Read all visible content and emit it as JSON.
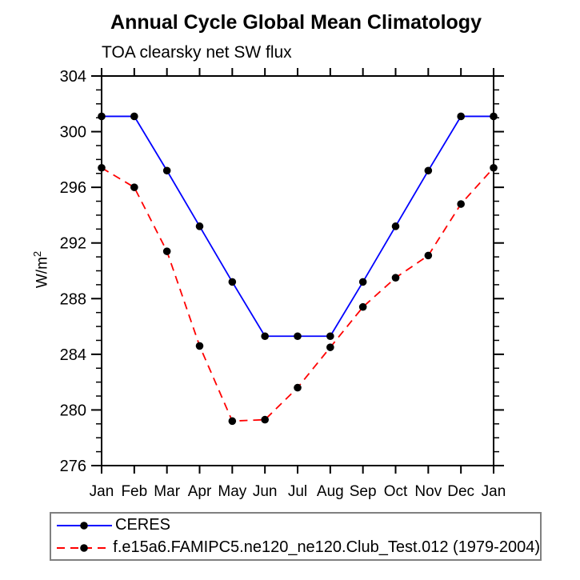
{
  "chart_data": {
    "type": "line",
    "title": "Annual Cycle Global Mean Climatology",
    "subtitle": "TOA clearsky net SW flux",
    "xlabel": "",
    "ylabel": "W/m^2",
    "ylabel_base": "W/m",
    "ylabel_exponent": "2",
    "x_categories": [
      "Jan",
      "Feb",
      "Mar",
      "Apr",
      "May",
      "Jun",
      "Jul",
      "Aug",
      "Sep",
      "Oct",
      "Nov",
      "Dec",
      "Jan"
    ],
    "ylim": [
      276,
      304
    ],
    "y_major_ticks": [
      276,
      280,
      284,
      288,
      292,
      296,
      300,
      304
    ],
    "y_minor_step": 1,
    "grid": false,
    "legend_position": "bottom-left box",
    "axis_color": "#000000",
    "marker_color": "#000000",
    "marker_shape": "circle",
    "series": [
      {
        "name": "CERES",
        "color": "#0000ff",
        "line_style": "solid",
        "values": [
          301.1,
          301.1,
          297.2,
          293.2,
          289.2,
          285.3,
          285.3,
          285.3,
          289.2,
          293.2,
          297.2,
          301.1,
          301.1
        ]
      },
      {
        "name": "f.e15a6.FAMIPC5.ne120_ne120.Club_Test.012 (1979-2004)",
        "color": "#ff0000",
        "line_style": "dashed",
        "values": [
          297.4,
          296.0,
          291.4,
          284.6,
          279.2,
          279.3,
          281.6,
          284.5,
          287.4,
          289.5,
          291.1,
          294.8,
          297.4
        ]
      }
    ]
  }
}
